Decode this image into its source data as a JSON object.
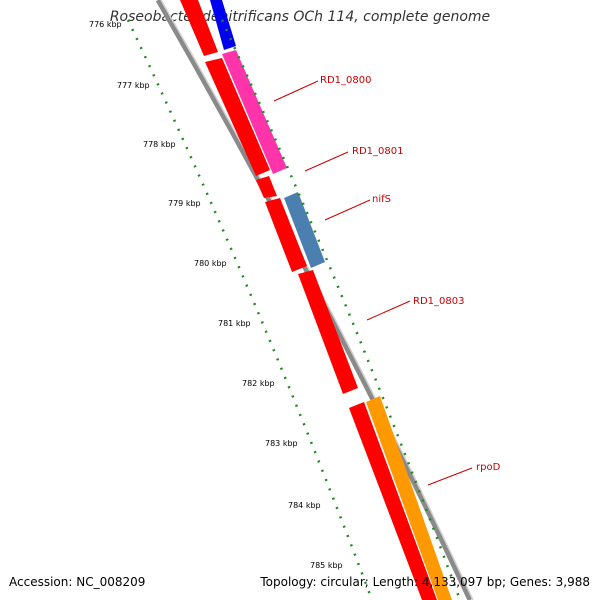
{
  "title": "Roseobacter denitrificans OCh 114, complete genome",
  "footer": {
    "accession": "Accession: NC_008209",
    "topology": "Topology: circular; Length: 4,133,097 bp; Genes: 3,988"
  },
  "scale_ticks": [
    "776 kbp",
    "777 kbp",
    "778 kbp",
    "779 kbp",
    "780 kbp",
    "781 kbp",
    "782 kbp",
    "783 kbp",
    "784 kbp",
    "785 kbp"
  ],
  "gene_labels": [
    "RD1_0800",
    "RD1_0801",
    "nifS",
    "RD1_0803",
    "rpoD"
  ],
  "colors": {
    "backbone": "#808080",
    "cds_forward": "#ff0000",
    "rd1_0800": "#ff33aa",
    "nifs": "#4a7fb0",
    "rpod": "#ff9900",
    "top_blue": "#0000ee",
    "tick": "#1e8c1e",
    "label": "#cc0000"
  }
}
